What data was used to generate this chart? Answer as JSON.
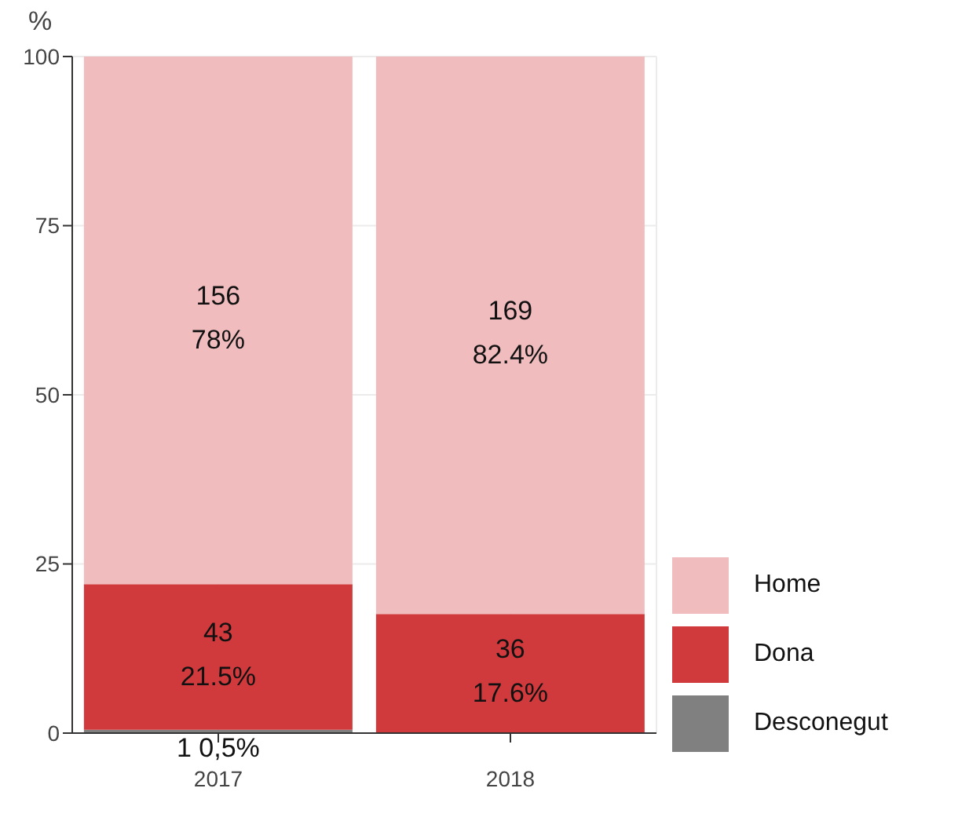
{
  "chart_data": {
    "type": "bar",
    "ylabel": "%",
    "categories": [
      "2017",
      "2018"
    ],
    "stacked": true,
    "series": [
      {
        "name": "Desconegut",
        "color": "#808080",
        "values": [
          0.5,
          0
        ],
        "value_labels": [
          "1  0,5%",
          null
        ]
      },
      {
        "name": "Dona",
        "color": "#d03a3d",
        "values": [
          21.5,
          17.6
        ],
        "value_labels": [
          "43\n21.5%",
          "36\n17.6%"
        ]
      },
      {
        "name": "Home",
        "color": "#f0bcbe",
        "values": [
          78,
          82.4
        ],
        "value_labels": [
          "156\n78%",
          "169\n82.4%"
        ]
      }
    ],
    "ylim": [
      0,
      100
    ],
    "yticks": [
      0,
      25,
      50,
      75,
      100
    ],
    "grid": true,
    "legend": "bottom right"
  }
}
